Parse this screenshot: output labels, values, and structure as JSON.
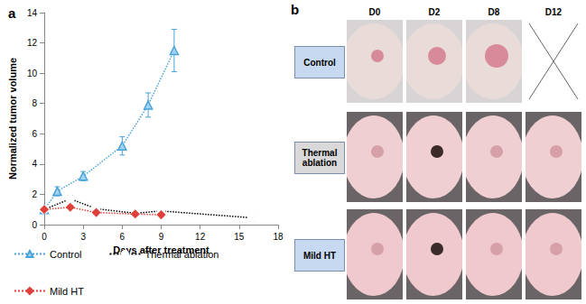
{
  "chart_data": {
    "type": "line",
    "panel_label": "a",
    "x_label": "Days after treatment",
    "y_label": "Normalized tumor volume",
    "xlim": [
      0,
      18
    ],
    "xticks": [
      0,
      3,
      6,
      9,
      12,
      15,
      18
    ],
    "ylim": [
      0,
      14
    ],
    "yticks": [
      0,
      2,
      4,
      6,
      8,
      10,
      12,
      14
    ],
    "legend": "bottom",
    "series": [
      {
        "name": "Control",
        "color": "#4aa3d8",
        "marker": "triangle",
        "line_style": "dotted",
        "x": [
          0,
          1,
          3,
          6,
          8,
          10
        ],
        "values": [
          1,
          2.2,
          3.2,
          5.2,
          7.9,
          11.5
        ],
        "errors": [
          0.1,
          0.3,
          0.3,
          0.6,
          0.8,
          1.4
        ]
      },
      {
        "name": "Thermal ablation",
        "color": "#000000",
        "marker": "circle",
        "line_style": "dotted",
        "x": [
          0,
          2,
          4,
          7,
          9,
          16
        ],
        "values": [
          1,
          1.7,
          1.05,
          0.75,
          0.9,
          0.45
        ],
        "errors": [
          0.1,
          0.2,
          0.1,
          0.1,
          0.1,
          0.2
        ]
      },
      {
        "name": "Mild HT",
        "color": "#e0403a",
        "marker": "diamond",
        "line_style": "dotted",
        "x": [
          0,
          2,
          4,
          7,
          9
        ],
        "values": [
          1,
          1.15,
          0.8,
          0.7,
          0.65
        ],
        "errors": [
          0.1,
          0.1,
          0.1,
          0.1,
          0.1
        ]
      }
    ]
  },
  "photo_panel": {
    "panel_label": "b",
    "days": [
      "D0",
      "D2",
      "D8",
      "D12"
    ],
    "rows": [
      {
        "label": "Control",
        "color": "#c6d9f1",
        "missing_days": [
          "D12"
        ]
      },
      {
        "label": "Thermal ablation",
        "color": "#d9d9d9",
        "missing_days": []
      },
      {
        "label": "Mild HT",
        "color": "#c6d9f1",
        "missing_days": []
      }
    ]
  }
}
